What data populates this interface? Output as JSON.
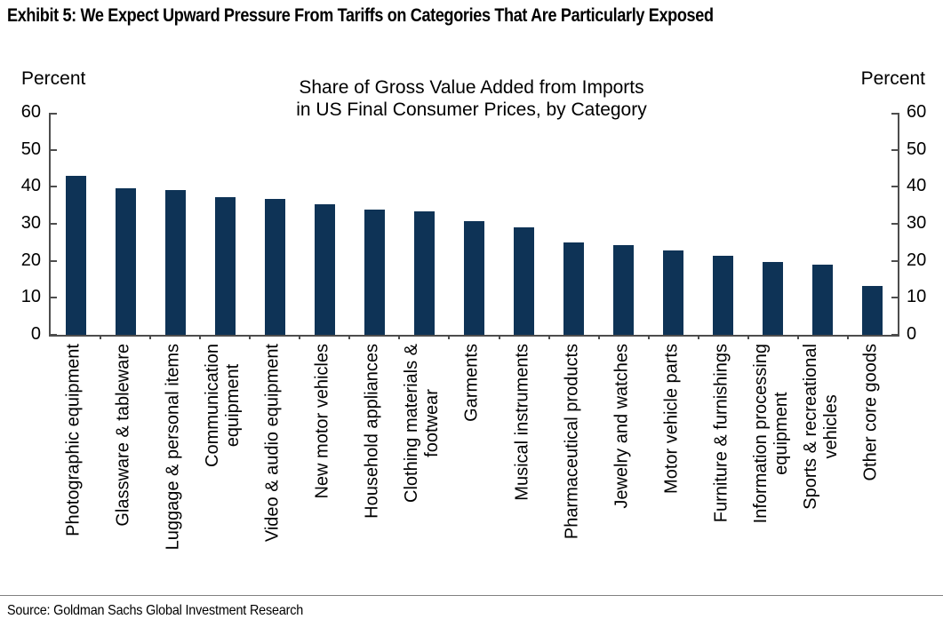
{
  "exhibit_title": "Exhibit 5: We Expect Upward Pressure From Tariffs on Categories That Are Particularly Exposed",
  "source": "Source: Goldman Sachs Global Investment Research",
  "axis_left_label": "Percent",
  "axis_right_label": "Percent",
  "colors": {
    "bar": "#0e3356",
    "axis": "#4d4d4d"
  },
  "chart_data": {
    "type": "bar",
    "title": "Share of Gross Value Added from Imports\nin US Final Consumer Prices, by Category",
    "ylabel_left": "Percent",
    "ylabel_right": "Percent",
    "ylim": [
      0,
      60
    ],
    "yticks": [
      0,
      10,
      20,
      30,
      40,
      50,
      60
    ],
    "grid": false,
    "legend": "none",
    "bar_color": "#0e3356",
    "categories": [
      "Photographic equipment",
      "Glassware & tableware",
      "Luggage & personal items",
      "Communication\nequipment",
      "Video & audio equipment",
      "New motor vehicles",
      "Household appliances",
      "Clothing materials &\nfootwear",
      "Garments",
      "Musical instruments",
      "Pharmaceutical products",
      "Jewelry and watches",
      "Motor vehicle parts",
      "Furniture & furnishings",
      "Information processing\nequipment",
      "Sports & recreational\nvehicles",
      "Other core goods"
    ],
    "values": [
      43,
      39.7,
      39.2,
      37.2,
      36.8,
      35.3,
      33.9,
      33.4,
      30.7,
      29.1,
      24.9,
      24.2,
      22.9,
      21.4,
      19.8,
      19,
      13.3
    ]
  }
}
